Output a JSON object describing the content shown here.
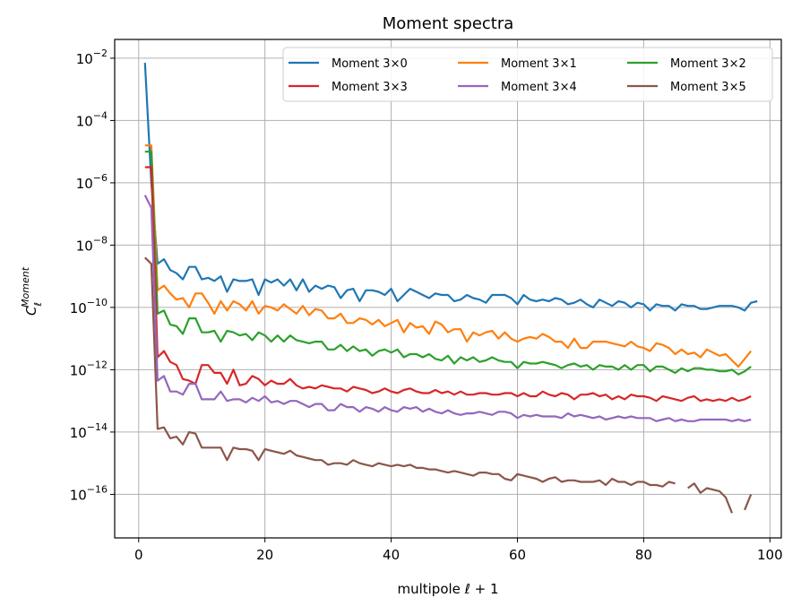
{
  "chart_data": {
    "type": "line",
    "title": "Moment spectra",
    "xlabel": "multipole ℓ + 1",
    "ylabel": "C_ℓ^Moment",
    "ylabel_main": "C",
    "ylabel_sub": "ℓ",
    "ylabel_sup": "Moment",
    "x_scale": "linear",
    "y_scale": "log",
    "xlim": [
      -3.8,
      101.8
    ],
    "ylim": [
      4e-18,
      0.04
    ],
    "x_ticks": [
      0,
      20,
      40,
      60,
      80,
      100
    ],
    "x_tick_labels": [
      "0",
      "20",
      "40",
      "60",
      "80",
      "100"
    ],
    "y_ticks": [
      -16,
      -14,
      -12,
      -10,
      -8,
      -6,
      -4,
      -2
    ],
    "y_tick_labels": [
      "10",
      "10",
      "10",
      "10",
      "10",
      "10",
      "10",
      "10"
    ],
    "y_tick_exponents": [
      "−16",
      "−14",
      "−12",
      "−10",
      "−8",
      "−6",
      "−4",
      "−2"
    ],
    "grid": true,
    "legend_position": "top-right",
    "legend_columns": 3,
    "series": [
      {
        "name": "Moment 3×0",
        "color": "#1f77b4",
        "x_start": 1,
        "log10_values": [
          -2.15,
          -6.0,
          -8.6,
          -8.45,
          -8.8,
          -8.9,
          -9.1,
          -8.7,
          -8.7,
          -9.1,
          -9.05,
          -9.15,
          -9.0,
          -9.5,
          -9.1,
          -9.15,
          -9.15,
          -9.1,
          -9.6,
          -9.1,
          -9.2,
          -9.1,
          -9.3,
          -9.1,
          -9.45,
          -9.1,
          -9.5,
          -9.3,
          -9.4,
          -9.3,
          -9.35,
          -9.7,
          -9.45,
          -9.4,
          -9.8,
          -9.45,
          -9.45,
          -9.5,
          -9.6,
          -9.4,
          -9.8,
          -9.6,
          -9.4,
          -9.5,
          -9.6,
          -9.7,
          -9.55,
          -9.6,
          -9.6,
          -9.8,
          -9.75,
          -9.6,
          -9.7,
          -9.75,
          -9.85,
          -9.6,
          -9.6,
          -9.6,
          -9.7,
          -9.9,
          -9.6,
          -9.75,
          -9.8,
          -9.75,
          -9.8,
          -9.7,
          -9.75,
          -9.9,
          -9.85,
          -9.75,
          -9.9,
          -10.0,
          -9.75,
          -9.85,
          -9.95,
          -9.8,
          -9.85,
          -10.0,
          -9.85,
          -9.9,
          -10.1,
          -9.9,
          -9.95,
          -9.95,
          -10.1,
          -9.9,
          -9.95,
          -9.95,
          -10.05,
          -10.05,
          -10.0,
          -9.95,
          -9.95,
          -9.95,
          -10.0,
          -10.1,
          -9.85,
          -9.8
        ]
      },
      {
        "name": "Moment 3×1",
        "color": "#ff7f0e",
        "x_start": 1,
        "log10_values": [
          -4.8,
          -4.8,
          -9.45,
          -9.3,
          -9.55,
          -9.75,
          -9.7,
          -10.0,
          -9.55,
          -9.55,
          -9.85,
          -10.2,
          -9.8,
          -10.1,
          -9.8,
          -9.9,
          -10.1,
          -9.8,
          -10.2,
          -9.95,
          -10.0,
          -10.1,
          -9.9,
          -10.05,
          -10.2,
          -9.95,
          -10.25,
          -10.05,
          -10.1,
          -10.35,
          -10.35,
          -10.2,
          -10.5,
          -10.5,
          -10.35,
          -10.4,
          -10.55,
          -10.4,
          -10.6,
          -10.5,
          -10.4,
          -10.8,
          -10.5,
          -10.65,
          -10.6,
          -10.85,
          -10.45,
          -10.55,
          -10.8,
          -10.7,
          -10.7,
          -11.1,
          -10.8,
          -10.9,
          -10.8,
          -10.75,
          -11.0,
          -10.8,
          -11.0,
          -11.1,
          -11.0,
          -10.95,
          -11.0,
          -10.85,
          -10.95,
          -11.1,
          -11.1,
          -11.3,
          -11.0,
          -11.3,
          -11.3,
          -11.1,
          -11.1,
          -11.1,
          -11.15,
          -11.2,
          -11.25,
          -11.1,
          -11.25,
          -11.3,
          -11.4,
          -11.15,
          -11.2,
          -11.3,
          -11.5,
          -11.35,
          -11.5,
          -11.45,
          -11.6,
          -11.35,
          -11.45,
          -11.55,
          -11.5,
          -11.7,
          -11.9,
          -11.65,
          -11.4
        ]
      },
      {
        "name": "Moment 3×2",
        "color": "#2ca02c",
        "x_start": 1,
        "log10_values": [
          -5.0,
          -5.0,
          -10.2,
          -10.1,
          -10.55,
          -10.6,
          -10.85,
          -10.35,
          -10.35,
          -10.8,
          -10.8,
          -10.75,
          -11.1,
          -10.75,
          -10.8,
          -10.9,
          -10.85,
          -11.05,
          -10.8,
          -10.9,
          -11.1,
          -10.9,
          -11.1,
          -10.9,
          -11.05,
          -11.1,
          -11.15,
          -11.1,
          -11.1,
          -11.35,
          -11.35,
          -11.2,
          -11.4,
          -11.25,
          -11.4,
          -11.35,
          -11.55,
          -11.4,
          -11.35,
          -11.45,
          -11.35,
          -11.6,
          -11.5,
          -11.5,
          -11.6,
          -11.5,
          -11.65,
          -11.7,
          -11.55,
          -11.8,
          -11.6,
          -11.7,
          -11.6,
          -11.75,
          -11.7,
          -11.6,
          -11.7,
          -11.75,
          -11.75,
          -11.95,
          -11.75,
          -11.8,
          -11.8,
          -11.75,
          -11.8,
          -11.85,
          -11.95,
          -11.85,
          -11.8,
          -11.9,
          -11.85,
          -12.0,
          -11.85,
          -11.9,
          -11.9,
          -12.0,
          -11.85,
          -12.0,
          -11.85,
          -11.85,
          -12.05,
          -11.9,
          -11.9,
          -12.0,
          -12.1,
          -11.95,
          -12.05,
          -11.95,
          -11.95,
          -12.0,
          -12.0,
          -12.05,
          -12.05,
          -12.0,
          -12.15,
          -12.05,
          -11.9
        ]
      },
      {
        "name": "Moment 3×3",
        "color": "#d62728",
        "x_start": 1,
        "log10_values": [
          -5.5,
          -5.5,
          -11.6,
          -11.4,
          -11.75,
          -11.85,
          -12.3,
          -12.35,
          -12.45,
          -11.85,
          -11.85,
          -12.1,
          -12.1,
          -12.45,
          -12.0,
          -12.5,
          -12.45,
          -12.2,
          -12.3,
          -12.5,
          -12.35,
          -12.45,
          -12.45,
          -12.3,
          -12.5,
          -12.6,
          -12.55,
          -12.6,
          -12.5,
          -12.55,
          -12.6,
          -12.6,
          -12.7,
          -12.55,
          -12.6,
          -12.65,
          -12.75,
          -12.7,
          -12.6,
          -12.7,
          -12.75,
          -12.65,
          -12.6,
          -12.7,
          -12.75,
          -12.75,
          -12.65,
          -12.75,
          -12.7,
          -12.8,
          -12.7,
          -12.8,
          -12.8,
          -12.75,
          -12.75,
          -12.8,
          -12.8,
          -12.75,
          -12.75,
          -12.85,
          -12.75,
          -12.85,
          -12.85,
          -12.7,
          -12.8,
          -12.85,
          -12.75,
          -12.8,
          -12.95,
          -12.8,
          -12.8,
          -12.75,
          -12.85,
          -12.8,
          -12.95,
          -12.85,
          -12.95,
          -12.8,
          -12.85,
          -12.85,
          -12.9,
          -13.0,
          -12.85,
          -12.9,
          -12.95,
          -13.0,
          -12.9,
          -12.85,
          -13.0,
          -12.95,
          -13.0,
          -12.95,
          -13.0,
          -12.9,
          -13.0,
          -12.95,
          -12.85
        ]
      },
      {
        "name": "Moment 3×4",
        "color": "#9467bd",
        "x_start": 1,
        "log10_values": [
          -6.4,
          -6.8,
          -12.35,
          -12.2,
          -12.7,
          -12.7,
          -12.8,
          -12.45,
          -12.45,
          -12.95,
          -12.95,
          -12.95,
          -12.7,
          -13.0,
          -12.95,
          -12.95,
          -13.05,
          -12.9,
          -13.0,
          -12.85,
          -13.05,
          -13.0,
          -13.1,
          -13.0,
          -13.0,
          -13.1,
          -13.2,
          -13.1,
          -13.1,
          -13.3,
          -13.3,
          -13.1,
          -13.2,
          -13.2,
          -13.35,
          -13.2,
          -13.25,
          -13.35,
          -13.2,
          -13.3,
          -13.35,
          -13.2,
          -13.25,
          -13.2,
          -13.35,
          -13.25,
          -13.35,
          -13.4,
          -13.3,
          -13.4,
          -13.45,
          -13.4,
          -13.4,
          -13.35,
          -13.4,
          -13.45,
          -13.35,
          -13.35,
          -13.4,
          -13.55,
          -13.45,
          -13.5,
          -13.45,
          -13.5,
          -13.5,
          -13.5,
          -13.55,
          -13.4,
          -13.5,
          -13.45,
          -13.5,
          -13.55,
          -13.5,
          -13.6,
          -13.55,
          -13.5,
          -13.55,
          -13.5,
          -13.55,
          -13.55,
          -13.55,
          -13.65,
          -13.6,
          -13.55,
          -13.65,
          -13.6,
          -13.65,
          -13.65,
          -13.6,
          -13.6,
          -13.6,
          -13.6,
          -13.6,
          -13.65,
          -13.6,
          -13.65,
          -13.6
        ]
      },
      {
        "name": "Moment 3×5",
        "color": "#8c564b",
        "x_start": 1,
        "log10_values": [
          -8.4,
          -8.6,
          -13.9,
          -13.85,
          -14.2,
          -14.15,
          -14.4,
          -14.0,
          -14.05,
          -14.5,
          -14.5,
          -14.5,
          -14.5,
          -14.9,
          -14.5,
          -14.55,
          -14.55,
          -14.6,
          -14.9,
          -14.55,
          -14.6,
          -14.65,
          -14.7,
          -14.6,
          -14.75,
          -14.8,
          -14.85,
          -14.9,
          -14.9,
          -15.05,
          -15.0,
          -15.0,
          -15.05,
          -14.9,
          -15.0,
          -15.05,
          -15.1,
          -15.0,
          -15.05,
          -15.1,
          -15.05,
          -15.1,
          -15.05,
          -15.15,
          -15.15,
          -15.2,
          -15.2,
          -15.25,
          -15.3,
          -15.25,
          -15.3,
          -15.35,
          -15.4,
          -15.3,
          -15.3,
          -15.35,
          -15.35,
          -15.5,
          -15.55,
          -15.35,
          -15.4,
          -15.45,
          -15.5,
          -15.6,
          -15.5,
          -15.45,
          -15.6,
          -15.55,
          -15.55,
          -15.6,
          -15.6,
          -15.6,
          -15.55,
          -15.7,
          -15.5,
          -15.6,
          -15.6,
          -15.7,
          -15.6,
          -15.6,
          -15.7,
          -15.7,
          -15.75,
          -15.6,
          -15.65,
          null,
          -15.8,
          -15.65,
          -15.95,
          -15.8,
          -15.85,
          -15.9,
          -16.1,
          -16.6,
          null,
          -16.5,
          -16.0
        ]
      }
    ]
  }
}
